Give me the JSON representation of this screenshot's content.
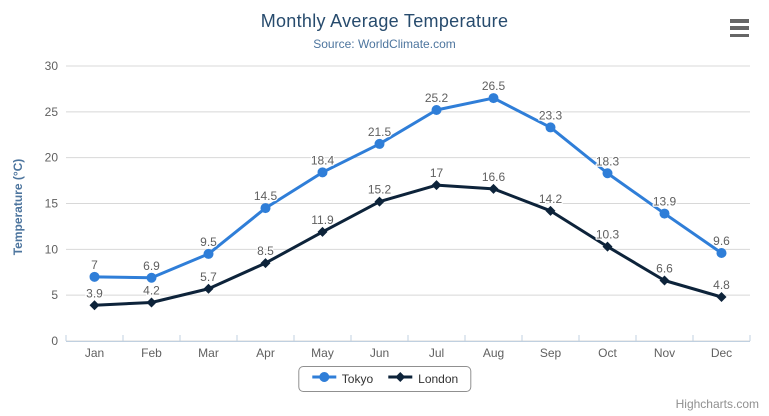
{
  "chart": {
    "credits": "Highcharts.com",
    "menu_icon": "hamburger-menu-icon"
  },
  "chart_data": {
    "type": "line",
    "title": "Monthly Average Temperature",
    "subtitle": "Source: WorldClimate.com",
    "categories": [
      "Jan",
      "Feb",
      "Mar",
      "Apr",
      "May",
      "Jun",
      "Jul",
      "Aug",
      "Sep",
      "Oct",
      "Nov",
      "Dec"
    ],
    "series": [
      {
        "name": "Tokyo",
        "color": "#2f7ed8",
        "marker": "circle",
        "values": [
          7,
          6.9,
          9.5,
          14.5,
          18.4,
          21.5,
          25.2,
          26.5,
          23.3,
          18.3,
          13.9,
          9.6
        ]
      },
      {
        "name": "London",
        "color": "#0d233a",
        "marker": "diamond",
        "values": [
          3.9,
          4.2,
          5.7,
          8.5,
          11.9,
          15.2,
          17,
          16.6,
          14.2,
          10.3,
          6.6,
          4.8
        ]
      }
    ],
    "xlabel": "",
    "ylabel": "Temperature (°C)",
    "ylim": [
      0,
      30
    ],
    "yticks": [
      0,
      5,
      10,
      15,
      20,
      25,
      30
    ],
    "grid": true,
    "data_labels": true,
    "legend_position": "bottom"
  },
  "colors": {
    "title": "#274b6d",
    "subtitle": "#4d759e",
    "axis_title": "#4d759e",
    "tick_labels": "#606060",
    "data_labels": "#606060",
    "gridline": "#d8d8d8",
    "axis_line": "#c0d0e0",
    "legend_border": "#909090",
    "legend_text": "#333333",
    "credits": "#909090",
    "menu_icon": "#666666",
    "tokyo": "#2f7ed8",
    "london": "#0d233a"
  }
}
